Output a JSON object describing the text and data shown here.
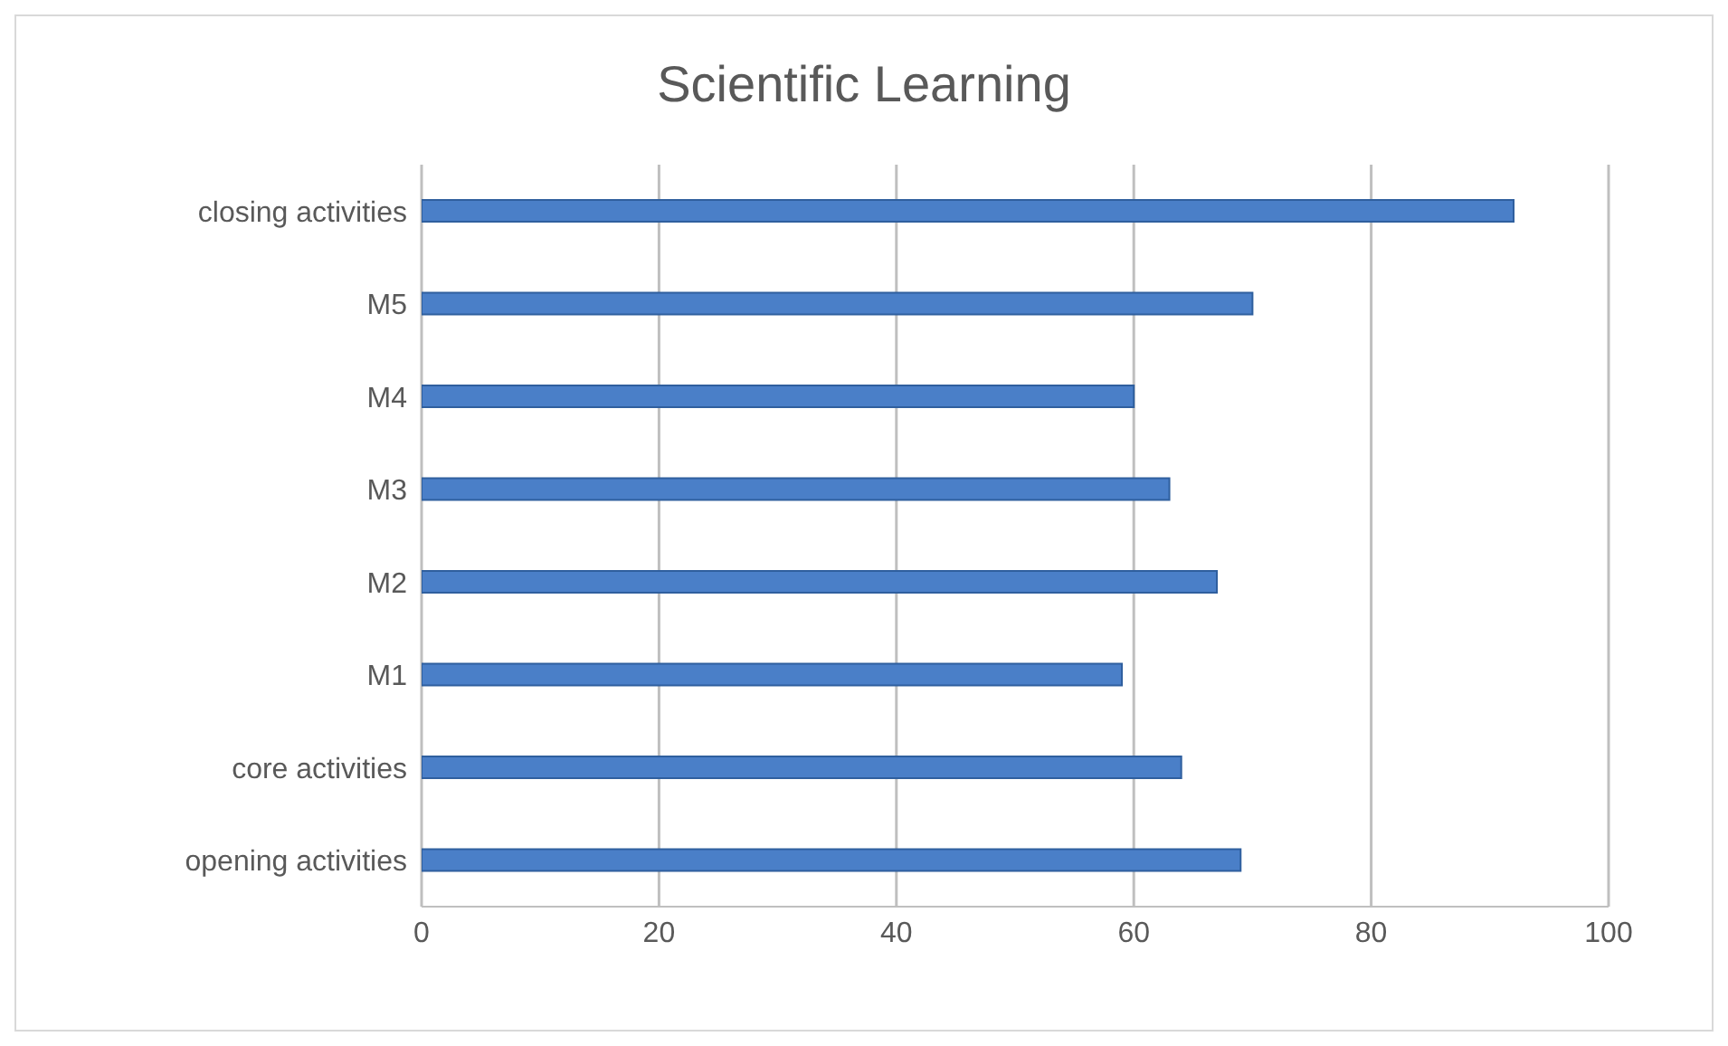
{
  "chart_data": {
    "type": "bar",
    "orientation": "horizontal",
    "title": "Scientific Learning",
    "categories": [
      "closing activities",
      "M5",
      "M4",
      "M3",
      "M2",
      "M1",
      "core activities",
      "opening activities"
    ],
    "values": [
      92,
      70,
      60,
      63,
      67,
      59,
      64,
      69
    ],
    "color": "#4a7fc8",
    "xlim": [
      0,
      100
    ],
    "xticks": [
      0,
      20,
      40,
      60,
      80,
      100
    ],
    "grid": "x",
    "legend": false
  }
}
